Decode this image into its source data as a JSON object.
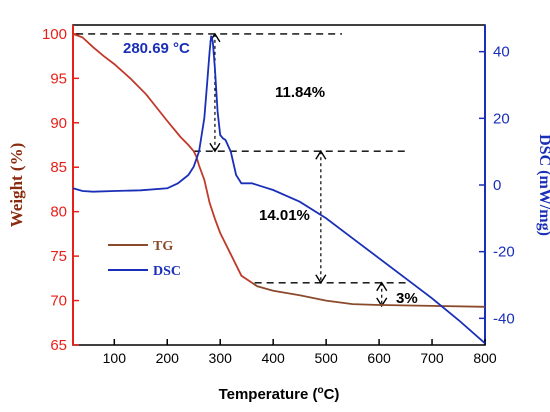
{
  "chart_data": {
    "type": "line",
    "xlabel": "Temperature (",
    "xlabel_unit": "o",
    "xlabel_tail": "C)",
    "ylabel_left": "Weight (%)",
    "ylabel_right": "DSC (mW/mg)",
    "xlim": [
      22,
      800
    ],
    "ylim_left": [
      65,
      101
    ],
    "ylim_right": [
      -48,
      48
    ],
    "x_ticks": [
      100,
      200,
      300,
      400,
      500,
      600,
      700,
      800
    ],
    "y_left_ticks": [
      65,
      70,
      75,
      80,
      85,
      90,
      95,
      100
    ],
    "y_right_ticks": [
      -40,
      -20,
      0,
      20,
      40
    ],
    "colors": {
      "tg": "#c0392b",
      "tg_tail": "#8b4a2b",
      "dsc": "#1a2fb8",
      "left_axis": "#e8201a",
      "right_axis": "#1a2fb8",
      "ylabel_left": "#8b2c10"
    },
    "series": [
      {
        "name": "TG",
        "axis": "left",
        "x": [
          22,
          40,
          60,
          80,
          100,
          130,
          160,
          200,
          225,
          240,
          250,
          255,
          260,
          270,
          280,
          290,
          300,
          320,
          340,
          360,
          370,
          400,
          450,
          500,
          550,
          600,
          700,
          800
        ],
        "values": [
          100,
          99.6,
          98.5,
          97.5,
          96.6,
          95.0,
          93.2,
          90.2,
          88.4,
          87.5,
          86.8,
          86.2,
          85.2,
          83.6,
          81.0,
          79.2,
          77.6,
          75.2,
          72.8,
          72.0,
          71.6,
          71.1,
          70.6,
          70.0,
          69.6,
          69.5,
          69.4,
          69.3
        ]
      },
      {
        "name": "DSC",
        "axis": "right",
        "x": [
          22,
          40,
          60,
          100,
          150,
          200,
          220,
          240,
          250,
          260,
          270,
          275,
          280,
          283,
          286,
          290,
          295,
          300,
          305,
          310,
          320,
          330,
          340,
          360,
          380,
          400,
          450,
          500,
          550,
          600,
          650,
          700,
          750,
          800
        ],
        "values": [
          -1.0,
          -1.8,
          -2.0,
          -1.8,
          -1.6,
          -1.0,
          0.5,
          3.0,
          5.5,
          10.0,
          20.0,
          30.0,
          40.0,
          44.8,
          43.0,
          35.0,
          22.0,
          15.0,
          14.0,
          13.5,
          10.0,
          3.0,
          0.5,
          0.5,
          -0.5,
          -1.5,
          -5.0,
          -10.0,
          -16.0,
          -22.0,
          -28.0,
          -34.0,
          -40.5,
          -47.5
        ]
      }
    ],
    "annotations": {
      "peak_label": "280.69 °C",
      "pct1": "11.84%",
      "pct2": "14.01%",
      "pct3": "3%"
    },
    "legend": {
      "placement": "bottom-left",
      "items": [
        "TG",
        "DSC"
      ]
    }
  }
}
